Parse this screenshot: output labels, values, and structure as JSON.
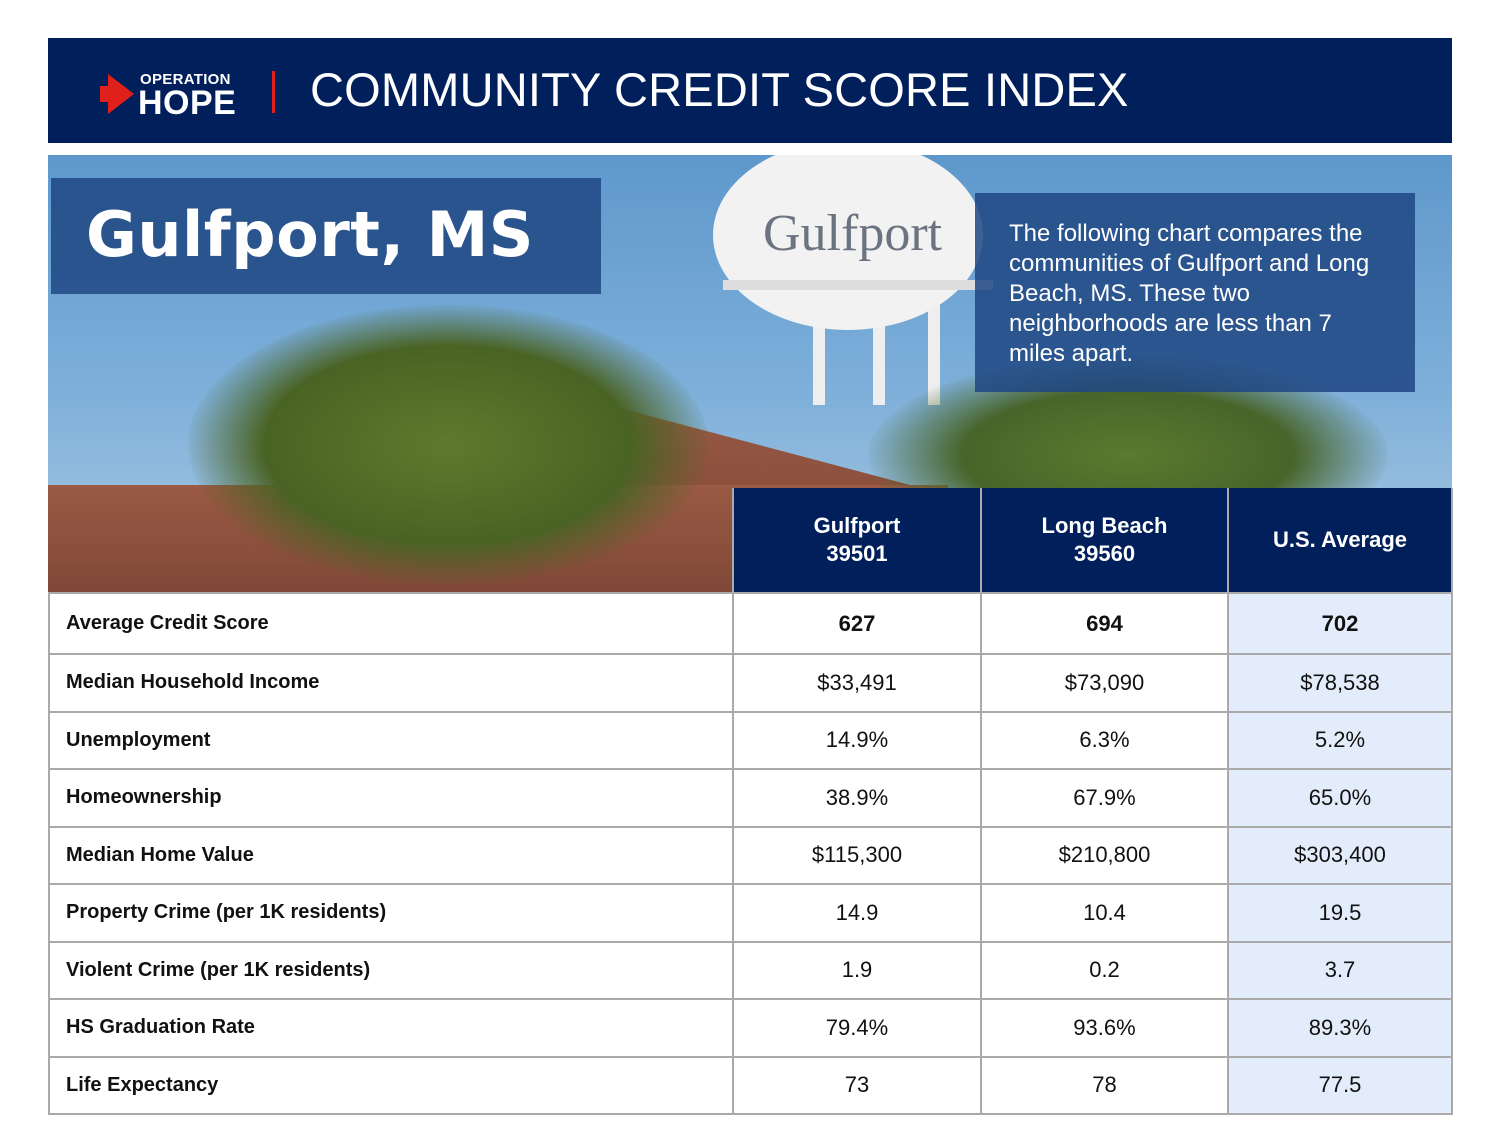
{
  "header": {
    "logo_line1": "OPERATION",
    "logo_line2": "HOPE",
    "title": "COMMUNITY CREDIT SCORE INDEX",
    "brand_color": "#001f5b",
    "accent_color": "#e0201b"
  },
  "hero": {
    "title": "Gulfport, MS",
    "tower_text": "Gulfport",
    "description": "The following chart compares the communities of Gulfport and Long Beach, MS. These two neighborhoods are less than 7 miles apart."
  },
  "table": {
    "columns": [
      {
        "name": "Gulfport",
        "zip": "39501"
      },
      {
        "name": "Long Beach",
        "zip": "39560"
      },
      {
        "name": "U.S. Average",
        "zip": ""
      }
    ],
    "rows": [
      {
        "label": "Average Credit Score",
        "values": [
          "627",
          "694",
          "702"
        ]
      },
      {
        "label": "Median Household Income",
        "values": [
          "$33,491",
          "$73,090",
          "$78,538"
        ]
      },
      {
        "label": "Unemployment",
        "values": [
          "14.9%",
          "6.3%",
          "5.2%"
        ]
      },
      {
        "label": "Homeownership",
        "values": [
          "38.9%",
          "67.9%",
          "65.0%"
        ]
      },
      {
        "label": "Median Home Value",
        "values": [
          "$115,300",
          "$210,800",
          "$303,400"
        ]
      },
      {
        "label": "Property Crime (per 1K residents)",
        "values": [
          "14.9",
          "10.4",
          "19.5"
        ]
      },
      {
        "label": "Violent Crime (per 1K residents)",
        "values": [
          "1.9",
          "0.2",
          "3.7"
        ]
      },
      {
        "label": "HS Graduation Rate",
        "values": [
          "79.4%",
          "93.6%",
          "89.3%"
        ]
      },
      {
        "label": "Life Expectancy",
        "values": [
          "73",
          "78",
          "77.5"
        ]
      }
    ]
  }
}
